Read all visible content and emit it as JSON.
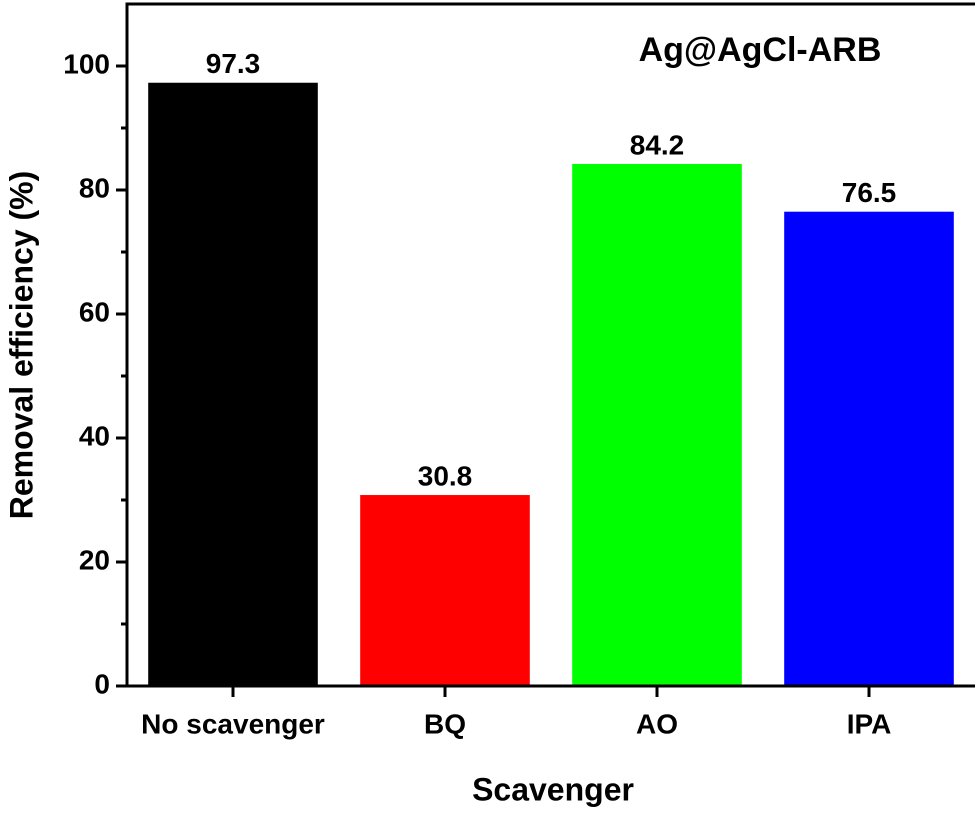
{
  "chart_data": {
    "type": "bar",
    "title": "Ag@AgCl-ARB",
    "x_label": "Scavenger",
    "y_label": "Removal efficiency (%)",
    "categories": [
      "No scavenger",
      "BQ",
      "AO",
      "IPA"
    ],
    "values": [
      97.3,
      30.8,
      84.2,
      76.5
    ],
    "colors": [
      "#000000",
      "#ff0000",
      "#00ff00",
      "#0000ff"
    ],
    "ylim": [
      0,
      110
    ],
    "yticks": [
      0,
      20,
      40,
      60,
      80,
      100
    ],
    "yminor_ticks": [
      10,
      30,
      50,
      70,
      90
    ]
  }
}
